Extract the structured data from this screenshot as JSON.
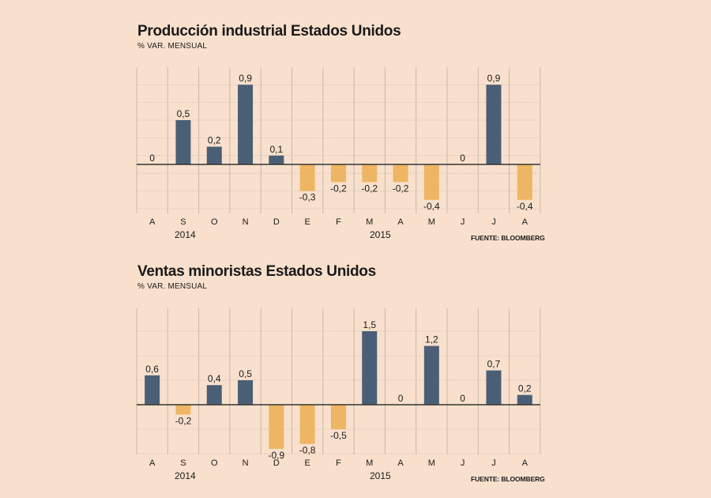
{
  "colors": {
    "background": "#f8e0cd",
    "positive": "#4a5f76",
    "negative": "#eeb664",
    "grid": "#c9b7a8",
    "baseline": "#333333"
  },
  "chart_data": [
    {
      "type": "bar",
      "title": "Producción industrial Estados Unidos",
      "subtitle": "% VAR. MENSUAL",
      "categories": [
        "A",
        "S",
        "O",
        "N",
        "D",
        "E",
        "F",
        "M",
        "A",
        "M",
        "J",
        "J",
        "A"
      ],
      "values": [
        0,
        0.5,
        0.2,
        0.9,
        0.1,
        -0.3,
        -0.2,
        -0.2,
        -0.2,
        -0.4,
        0,
        0.9,
        -0.4
      ],
      "value_labels": [
        "0",
        "0,5",
        "0,2",
        "0,9",
        "0,1",
        "-0,3",
        "-0,2",
        "-0,2",
        "-0,2",
        "-0,4",
        "0",
        "0,9",
        "-0,4"
      ],
      "year_labels": [
        "2014",
        "2015"
      ],
      "ylim": [
        -0.5,
        1.0
      ],
      "grid": true,
      "source": "FUENTE: BLOOMBERG"
    },
    {
      "type": "bar",
      "title": "Ventas minoristas Estados Unidos",
      "subtitle": "% VAR. MENSUAL",
      "categories": [
        "A",
        "S",
        "O",
        "N",
        "D",
        "E",
        "F",
        "M",
        "A",
        "M",
        "J",
        "J",
        "A"
      ],
      "values": [
        0.6,
        -0.2,
        0.4,
        0.5,
        -0.9,
        -0.8,
        -0.5,
        1.5,
        0,
        1.2,
        0,
        0.7,
        0.2
      ],
      "value_labels": [
        "0,6",
        "-0,2",
        "0,4",
        "0,5",
        "-0,9",
        "-0,8",
        "-0,5",
        "1,5",
        "0",
        "1,2",
        "0",
        "0,7",
        "0,2"
      ],
      "year_labels": [
        "2014",
        "2015"
      ],
      "ylim": [
        -1.0,
        2.0
      ],
      "grid": true,
      "source": "FUENTE: BLOOMBERG"
    }
  ]
}
